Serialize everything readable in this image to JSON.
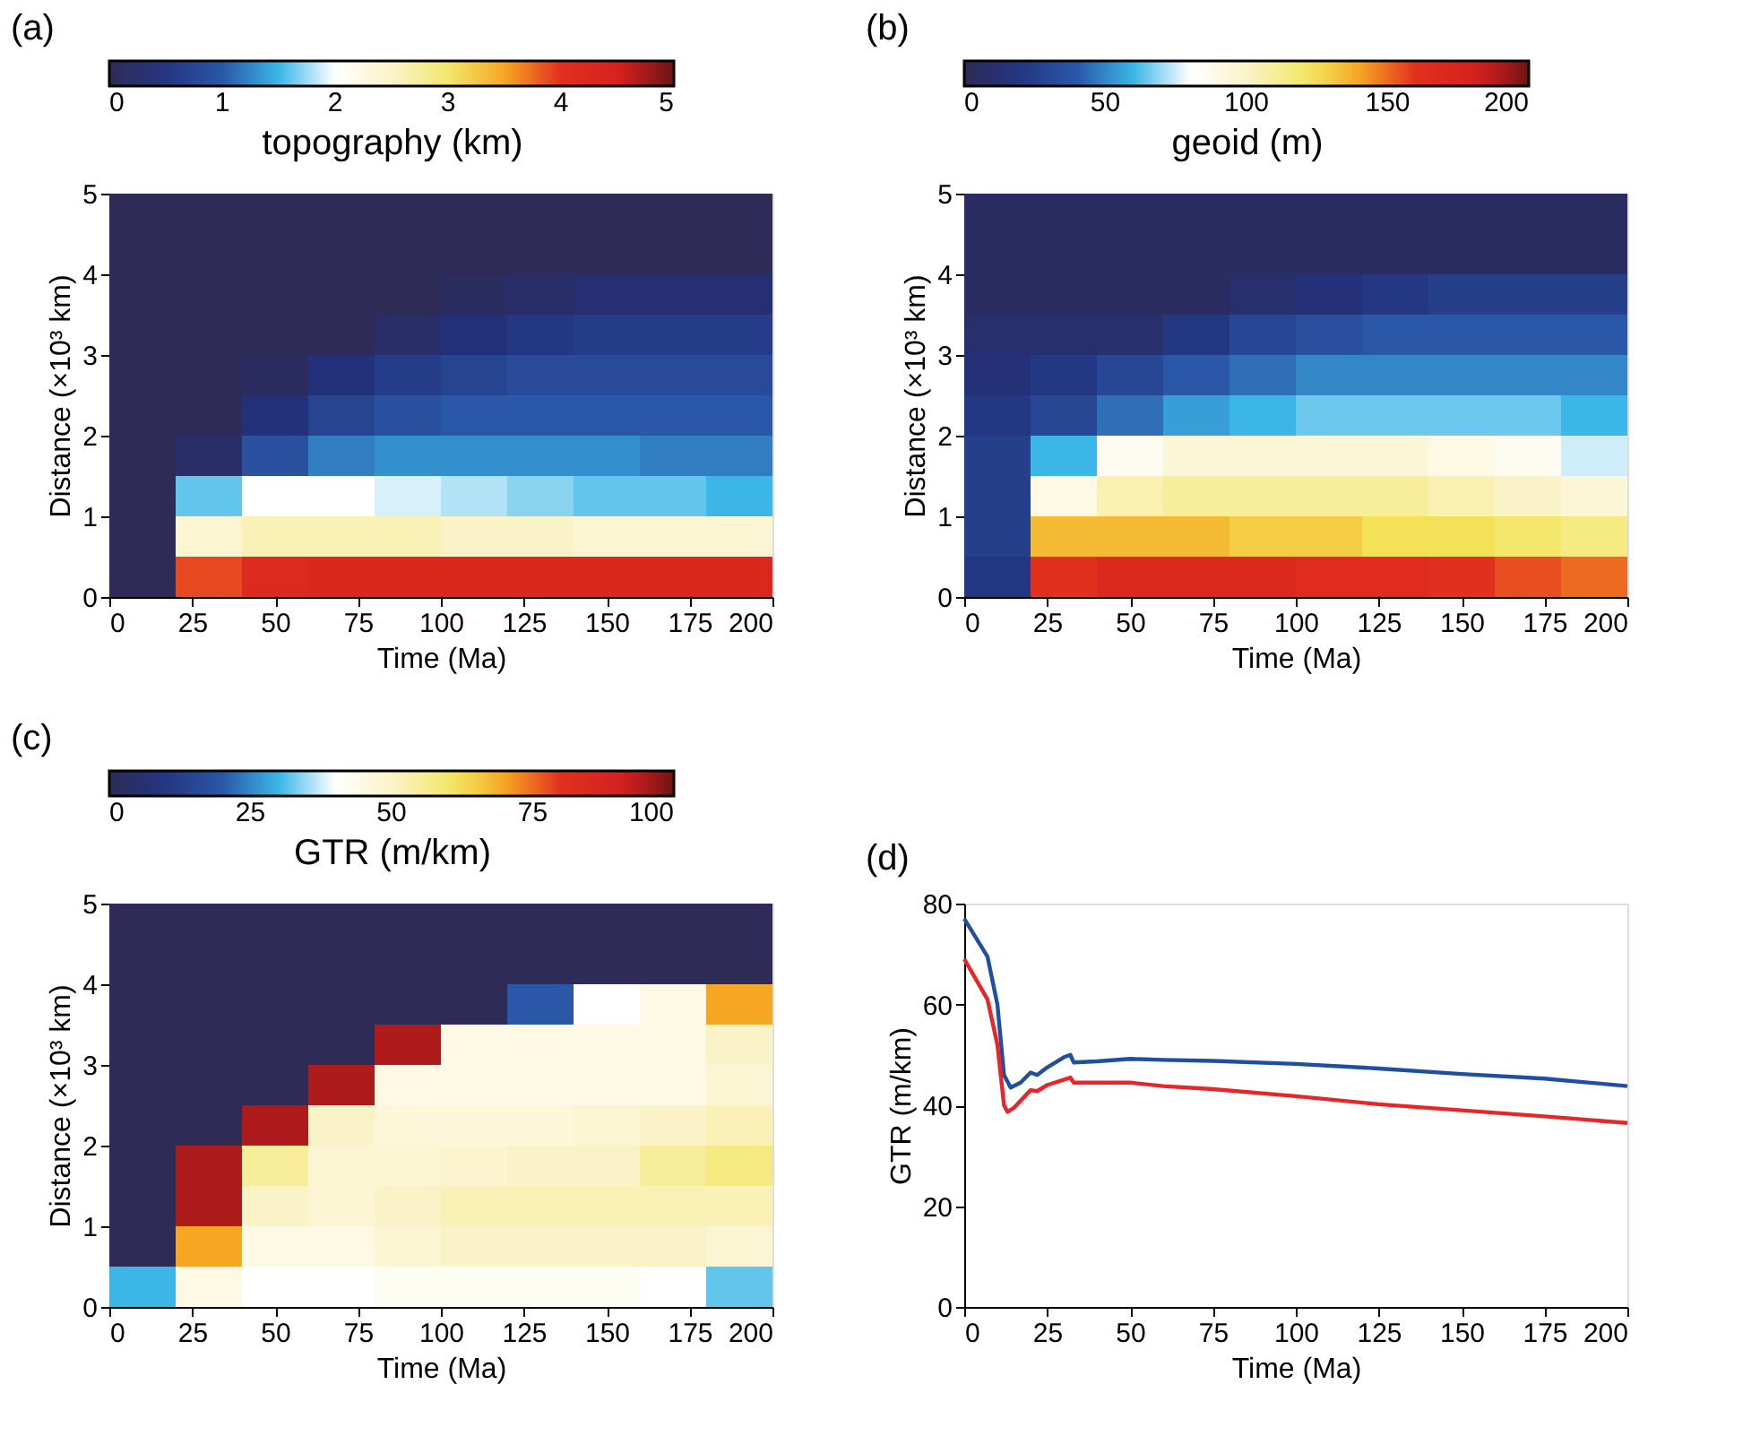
{
  "chart_data": [
    {
      "type": "heatmap",
      "title": "(a)",
      "clabel": "topography (km)",
      "xlabel": "Time (Ma)",
      "ylabel": "Distance (×10³ km)",
      "clim": [
        0,
        5
      ],
      "cticks": [
        0,
        1,
        2,
        3,
        4,
        5
      ],
      "xlim": [
        0,
        200
      ],
      "xticks": [
        0,
        25,
        50,
        75,
        100,
        125,
        150,
        175,
        200
      ],
      "ylim": [
        0,
        5
      ],
      "yticks": [
        0,
        1,
        2,
        3,
        4,
        5
      ],
      "x": [
        10,
        30,
        50,
        70,
        90,
        110,
        130,
        150,
        170,
        190
      ],
      "y": [
        4.75,
        4.25,
        3.75,
        3.25,
        2.75,
        2.25,
        1.75,
        1.25,
        0.75,
        0.25
      ],
      "cells": [
        [
          0,
          0,
          0,
          0,
          0,
          0,
          0,
          0,
          0,
          0
        ],
        [
          0,
          0,
          0,
          0,
          0,
          0,
          0,
          0,
          0,
          0
        ],
        [
          0,
          0,
          0,
          0,
          0,
          0.1,
          0.2,
          0.3,
          0.3,
          0.3
        ],
        [
          0,
          0,
          0,
          0,
          0.2,
          0.4,
          0.5,
          0.6,
          0.6,
          0.6
        ],
        [
          0,
          0,
          0.1,
          0.4,
          0.6,
          0.7,
          0.8,
          0.8,
          0.8,
          0.8
        ],
        [
          0,
          0,
          0.4,
          0.7,
          0.9,
          1.0,
          1.0,
          1.0,
          1.0,
          1.0
        ],
        [
          0,
          0.2,
          0.9,
          1.2,
          1.3,
          1.3,
          1.3,
          1.3,
          1.2,
          1.2
        ],
        [
          0,
          1.6,
          2.0,
          2.0,
          1.9,
          1.8,
          1.7,
          1.6,
          1.6,
          1.5
        ],
        [
          0,
          2.4,
          2.6,
          2.6,
          2.6,
          2.5,
          2.5,
          2.4,
          2.4,
          2.4
        ],
        [
          0,
          3.9,
          4.2,
          4.3,
          4.3,
          4.3,
          4.3,
          4.3,
          4.3,
          4.3
        ]
      ]
    },
    {
      "type": "heatmap",
      "title": "(b)",
      "clabel": "geoid (m)",
      "xlabel": "Time (Ma)",
      "ylabel": "Distance (×10³ km)",
      "clim": [
        0,
        200
      ],
      "cticks": [
        0,
        50,
        100,
        150,
        200
      ],
      "xlim": [
        0,
        200
      ],
      "xticks": [
        0,
        25,
        50,
        75,
        100,
        125,
        150,
        175,
        200
      ],
      "ylim": [
        0,
        5
      ],
      "yticks": [
        0,
        1,
        2,
        3,
        4,
        5
      ],
      "x": [
        10,
        30,
        50,
        70,
        90,
        110,
        130,
        150,
        170,
        190
      ],
      "y": [
        4.75,
        4.25,
        3.75,
        3.25,
        2.75,
        2.25,
        1.75,
        1.25,
        0.75,
        0.25
      ],
      "cells": [
        [
          5,
          5,
          5,
          5,
          5,
          5,
          5,
          5,
          5,
          5
        ],
        [
          5,
          5,
          5,
          5,
          5,
          5,
          5,
          5,
          5,
          5
        ],
        [
          5,
          5,
          5,
          5,
          10,
          15,
          20,
          25,
          25,
          25
        ],
        [
          10,
          10,
          10,
          20,
          30,
          35,
          40,
          40,
          40,
          40
        ],
        [
          15,
          20,
          30,
          40,
          45,
          50,
          50,
          50,
          50,
          50
        ],
        [
          20,
          30,
          45,
          55,
          60,
          65,
          65,
          65,
          65,
          60
        ],
        [
          25,
          60,
          85,
          95,
          95,
          95,
          95,
          90,
          85,
          75
        ],
        [
          25,
          90,
          105,
          110,
          110,
          110,
          110,
          105,
          100,
          95
        ],
        [
          25,
          135,
          135,
          135,
          130,
          130,
          125,
          125,
          120,
          115
        ],
        [
          20,
          160,
          170,
          170,
          170,
          165,
          165,
          160,
          155,
          150
        ]
      ]
    },
    {
      "type": "heatmap",
      "title": "(c)",
      "clabel": "GTR (m/km)",
      "xlabel": "Time (Ma)",
      "ylabel": "Distance (×10³ km)",
      "clim": [
        0,
        100
      ],
      "cticks": [
        0,
        25,
        50,
        75,
        100
      ],
      "xlim": [
        0,
        200
      ],
      "xticks": [
        0,
        25,
        50,
        75,
        100,
        125,
        150,
        175,
        200
      ],
      "ylim": [
        0,
        5
      ],
      "yticks": [
        0,
        1,
        2,
        3,
        4,
        5
      ],
      "x": [
        10,
        30,
        50,
        70,
        90,
        110,
        130,
        150,
        170,
        190
      ],
      "y": [
        4.75,
        4.25,
        3.75,
        3.25,
        2.75,
        2.25,
        1.75,
        1.25,
        0.75,
        0.25
      ],
      "cells": [
        [
          0,
          0,
          0,
          0,
          0,
          0,
          0,
          0,
          0,
          0
        ],
        [
          0,
          0,
          0,
          0,
          0,
          0,
          0,
          0,
          0,
          0
        ],
        [
          0,
          0,
          0,
          0,
          0,
          0,
          20,
          40,
          45,
          70
        ],
        [
          0,
          0,
          0,
          0,
          95,
          45,
          45,
          45,
          45,
          50
        ],
        [
          0,
          0,
          0,
          95,
          45,
          45,
          45,
          45,
          45,
          48
        ],
        [
          0,
          0,
          95,
          50,
          47,
          47,
          47,
          48,
          50,
          52
        ],
        [
          0,
          95,
          55,
          48,
          48,
          49,
          50,
          50,
          55,
          58
        ],
        [
          0,
          95,
          50,
          48,
          50,
          52,
          52,
          52,
          52,
          52
        ],
        [
          0,
          70,
          45,
          45,
          48,
          50,
          50,
          50,
          50,
          48
        ],
        [
          30,
          45,
          40,
          40,
          42,
          42,
          42,
          42,
          40,
          32
        ]
      ]
    },
    {
      "type": "line",
      "title": "(d)",
      "xlabel": "Time (Ma)",
      "ylabel": "GTR (m/km)",
      "xlim": [
        0,
        200
      ],
      "xticks": [
        0,
        25,
        50,
        75,
        100,
        125,
        150,
        175,
        200
      ],
      "ylim": [
        0,
        80
      ],
      "yticks": [
        0,
        20,
        40,
        60,
        80
      ],
      "series": [
        {
          "color": "#1f4fa3",
          "x": [
            0,
            7,
            10,
            12,
            14,
            17,
            20,
            22,
            25,
            30,
            32,
            33,
            40,
            50,
            60,
            75,
            100,
            125,
            150,
            175,
            200
          ],
          "values": [
            77,
            69.5,
            60,
            46,
            43.5,
            44.5,
            46.5,
            46,
            47.5,
            49.5,
            50,
            48.5,
            48.7,
            49.2,
            49,
            48.8,
            48.2,
            47.3,
            46.2,
            45.3,
            43.8
          ]
        },
        {
          "color": "#e8262a",
          "x": [
            0,
            7,
            10,
            12,
            13,
            15,
            20,
            22,
            25,
            32,
            33,
            40,
            50,
            60,
            75,
            100,
            125,
            150,
            175,
            200
          ],
          "values": [
            69,
            61,
            52,
            40,
            38.7,
            39.5,
            43,
            42.8,
            44,
            45.5,
            44.5,
            44.5,
            44.5,
            43.8,
            43.2,
            41.8,
            40.2,
            39,
            37.8,
            36.5
          ]
        }
      ]
    }
  ]
}
